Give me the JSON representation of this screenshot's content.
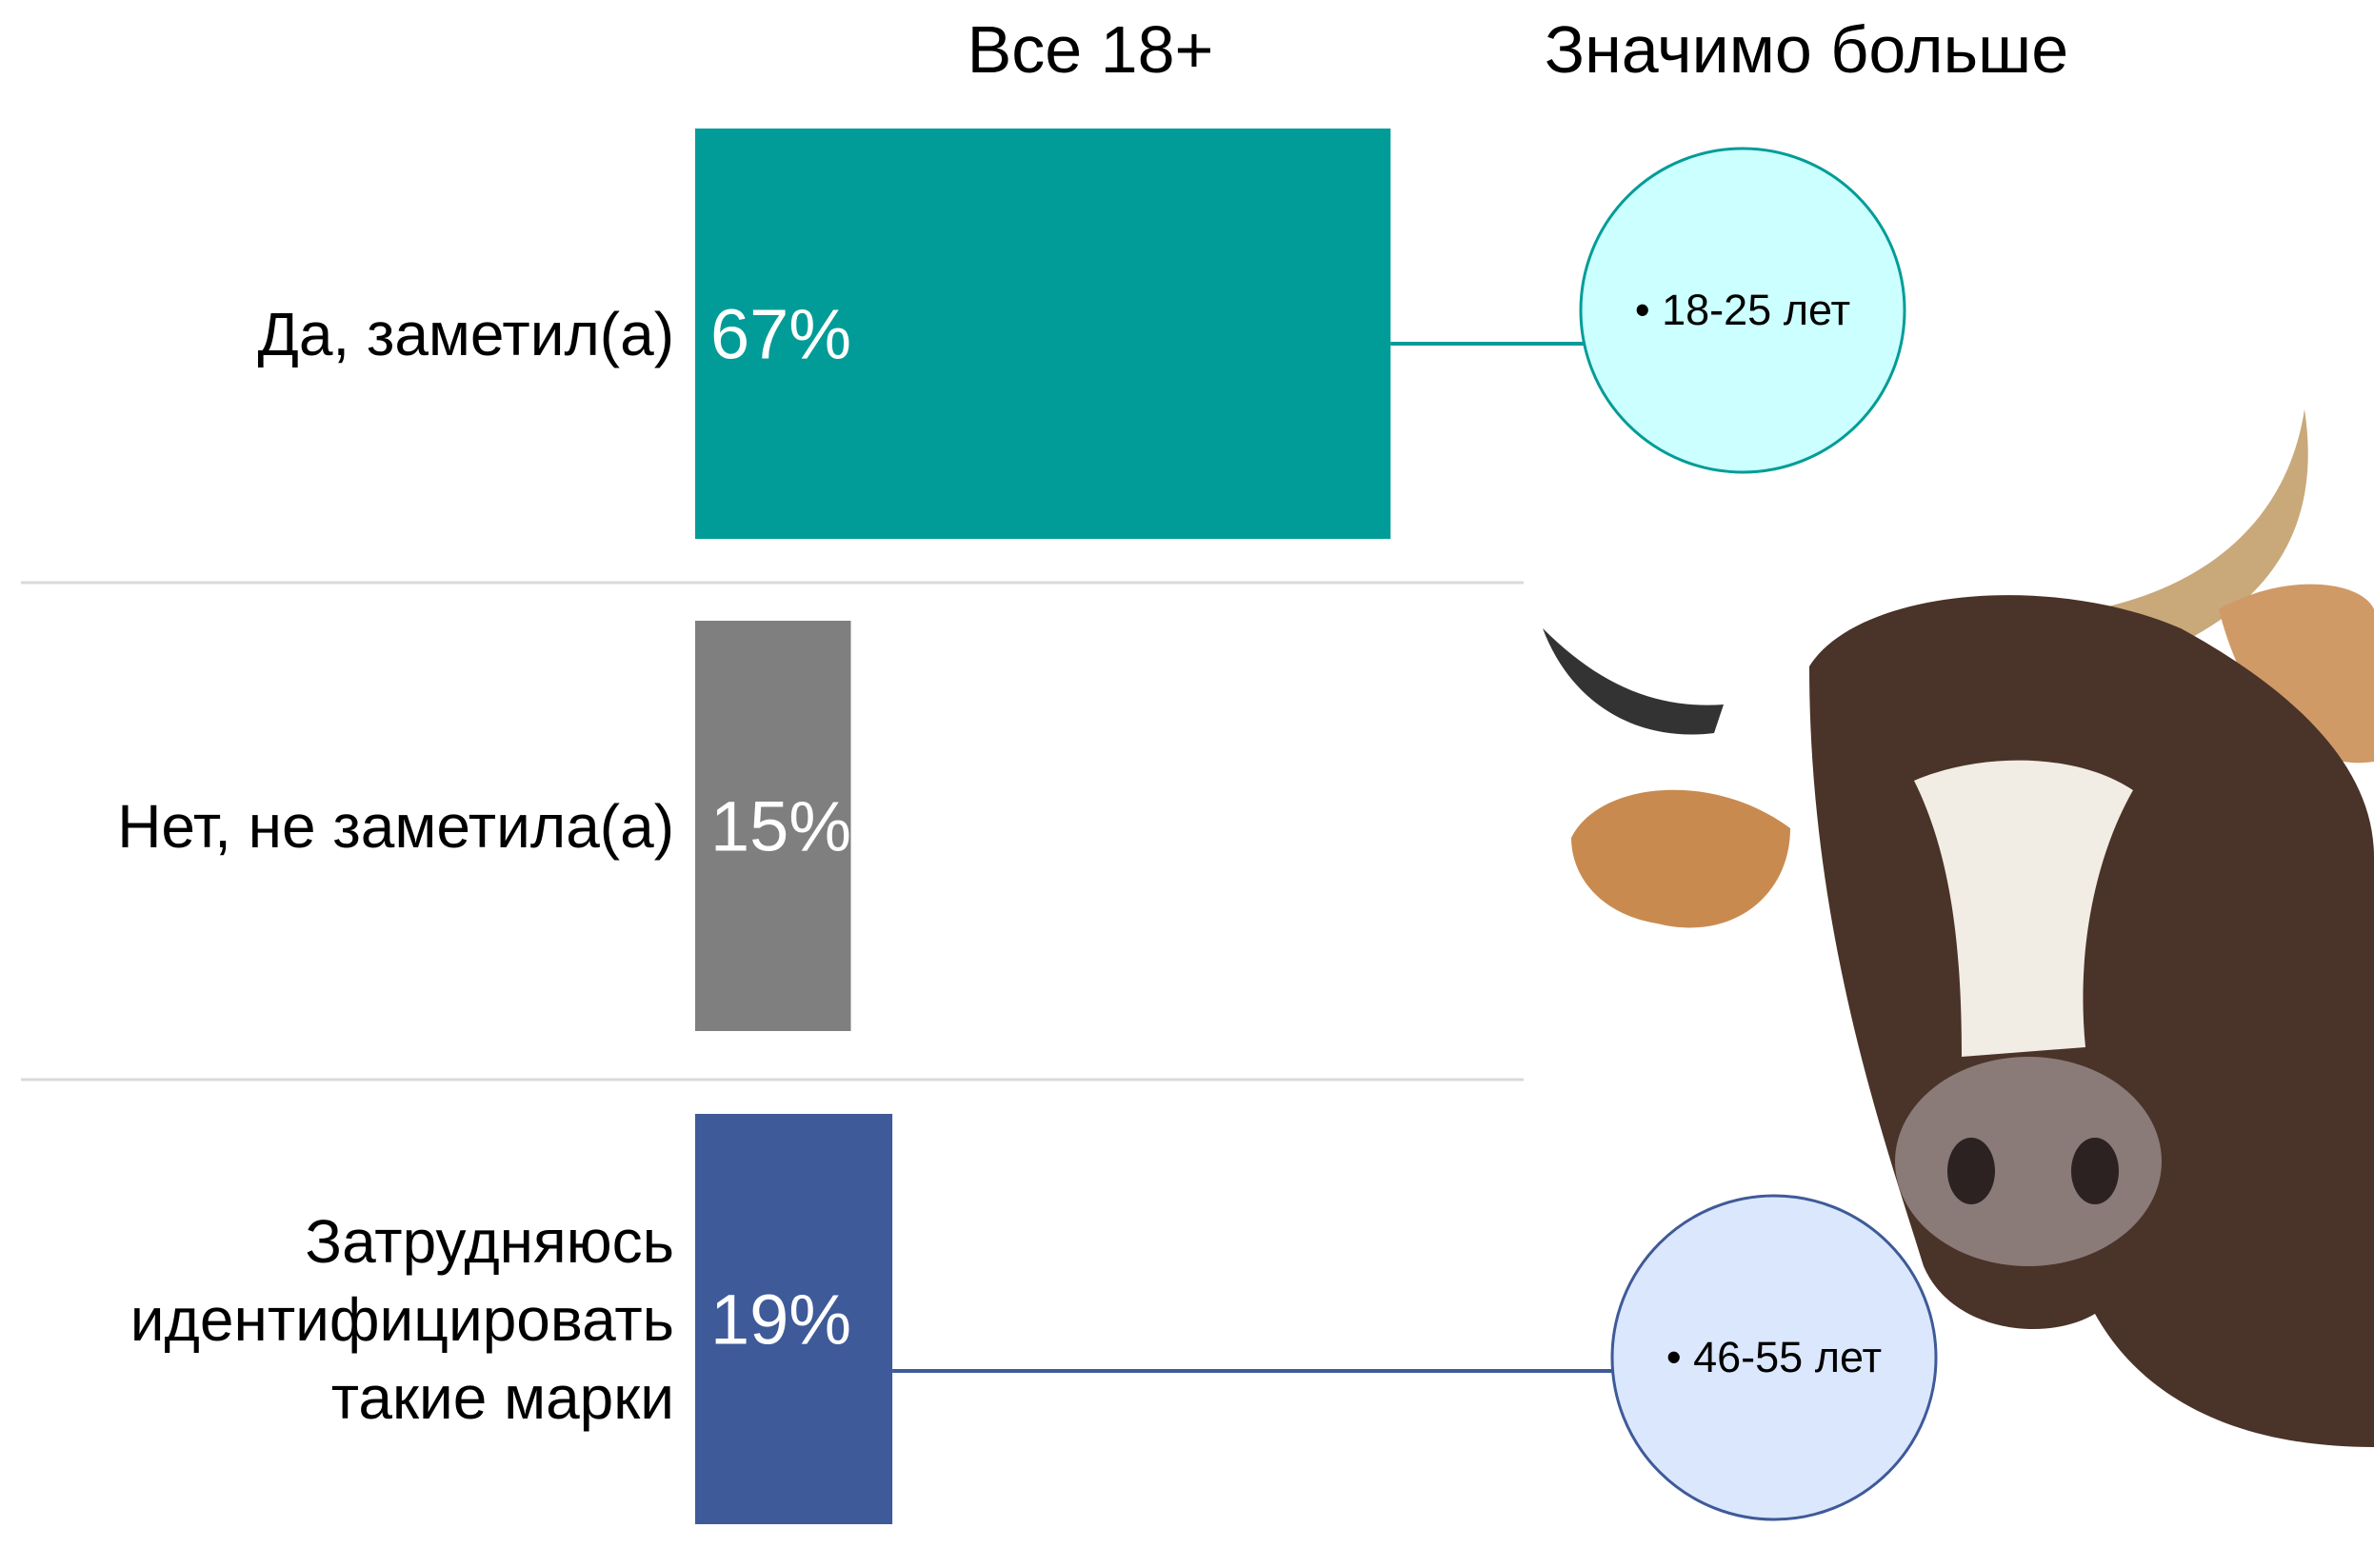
{
  "chart_data": {
    "type": "hbar",
    "headers": [
      "Все 18+",
      "Значимо больше"
    ],
    "categories": [
      "Да, заметил(а)",
      "Нет, не заметила(а)",
      "Затрудняюсь идентифицировать такие марки"
    ],
    "values": [
      67,
      15,
      19
    ],
    "value_labels": [
      "67%",
      "15%",
      "19%"
    ],
    "colors": [
      "#029c98",
      "#7f7f7f",
      "#3f5a99"
    ],
    "callouts": [
      "• 18-25 лет",
      null,
      "• 46-55 лет"
    ],
    "callout_colors": [
      "#ccffff",
      null,
      "#dae7fc"
    ]
  }
}
